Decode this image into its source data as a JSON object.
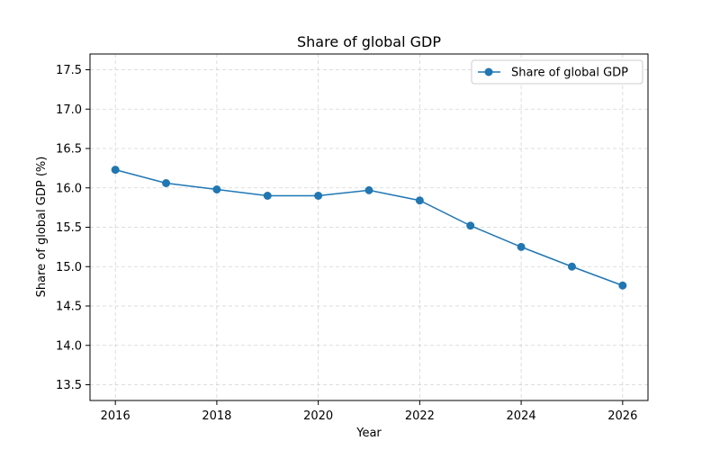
{
  "chart_data": {
    "type": "line",
    "title": "Share of global GDP",
    "xlabel": "Year",
    "ylabel": "Share of global GDP (%)",
    "x": [
      2016,
      2017,
      2018,
      2019,
      2020,
      2021,
      2022,
      2023,
      2024,
      2025,
      2026
    ],
    "series": [
      {
        "name": "Share of global GDP",
        "values": [
          16.23,
          16.06,
          15.98,
          15.9,
          15.9,
          15.97,
          15.84,
          15.52,
          15.25,
          15.0,
          14.76
        ]
      }
    ],
    "xlim": [
      2015.5,
      2026.5
    ],
    "ylim": [
      13.3,
      17.7
    ],
    "x_ticks": [
      "2016",
      "2018",
      "2020",
      "2022",
      "2024",
      "2026"
    ],
    "y_ticks": [
      "13.5",
      "14.0",
      "14.5",
      "15.0",
      "15.5",
      "16.0",
      "16.5",
      "17.0",
      "17.5"
    ],
    "grid": true,
    "legend": "top-right",
    "colors": {
      "series": "#1f77b4"
    }
  }
}
